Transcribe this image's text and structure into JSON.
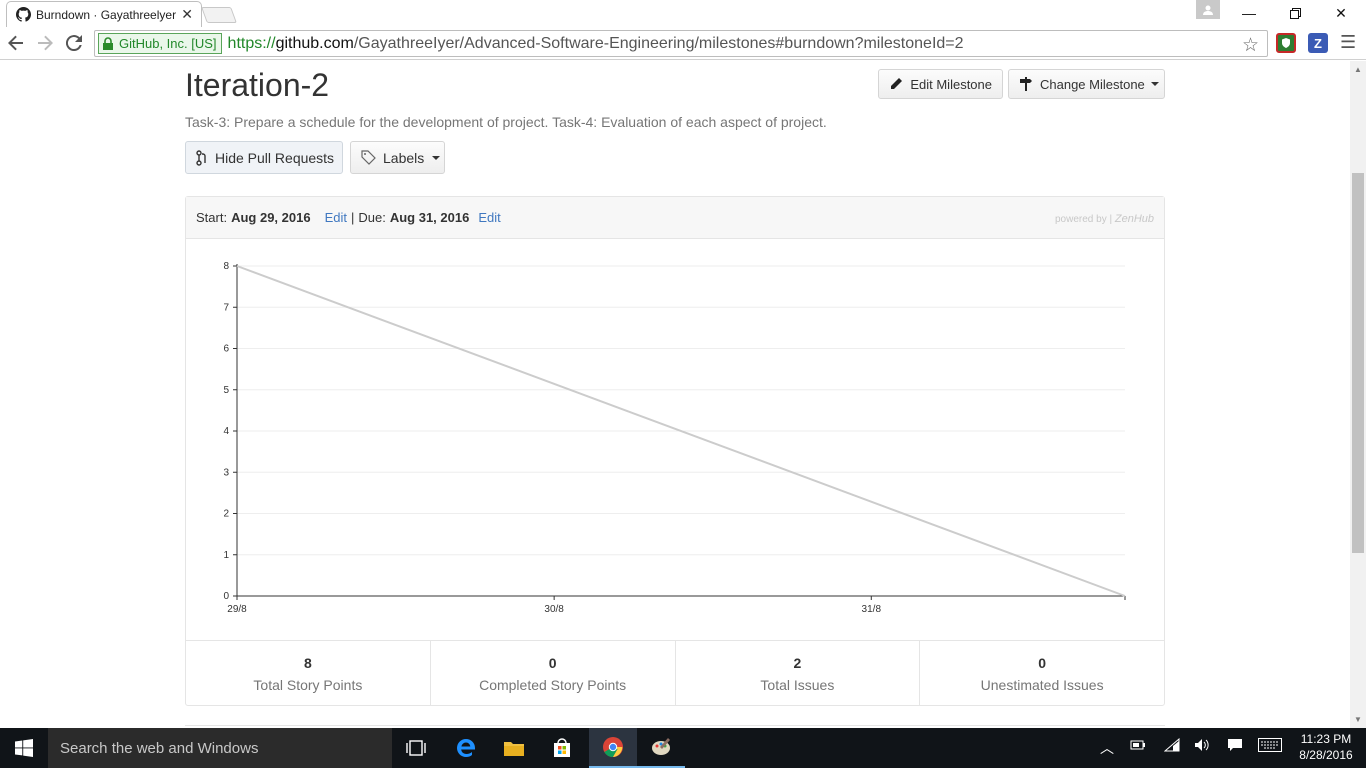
{
  "browser": {
    "tab_title": "Burndown · Gayathreelyer",
    "ev_label": "GitHub, Inc. [US]",
    "url_scheme": "https://",
    "url_host": "github.com",
    "url_path": "/GayathreeIyer/Advanced-Software-Engineering/milestones#burndown?milestoneId=2"
  },
  "milestone": {
    "title": "Iteration-2",
    "description": "Task-3: Prepare a schedule for the development of project. Task-4: Evaluation of each aspect of project.",
    "edit_button": "Edit Milestone",
    "change_button": "Change Milestone",
    "hide_pr_button": "Hide Pull Requests",
    "labels_button": "Labels"
  },
  "burndown": {
    "start_label": "Start:",
    "start_date": "Aug 29, 2016",
    "edit1": "Edit",
    "separator": "|",
    "due_label": "Due:",
    "due_date": "Aug 31, 2016",
    "edit2": "Edit",
    "powered_by": "powered by |",
    "brand": "ZenHub"
  },
  "stats": [
    {
      "value": "8",
      "label": "Total Story Points"
    },
    {
      "value": "0",
      "label": "Completed Story Points"
    },
    {
      "value": "2",
      "label": "Total Issues"
    },
    {
      "value": "0",
      "label": "Unestimated Issues"
    }
  ],
  "chart_data": {
    "type": "line",
    "x_tick_labels": [
      "29/8",
      "30/8",
      "31/8"
    ],
    "y_ticks": [
      0,
      1,
      2,
      3,
      4,
      5,
      6,
      7,
      8
    ],
    "ylim": [
      0,
      8
    ],
    "xlim_days": [
      0,
      2.8
    ],
    "grid": true,
    "series": [
      {
        "x": [
          0,
          2.8
        ],
        "y": [
          8,
          0
        ],
        "color": "#cccccc"
      }
    ]
  },
  "taskbar": {
    "search_placeholder": "Search the web and Windows",
    "time": "11:23 PM",
    "date": "8/28/2016"
  }
}
